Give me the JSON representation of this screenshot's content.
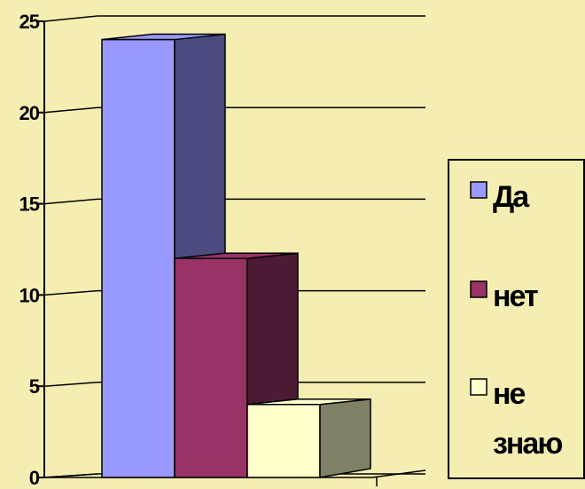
{
  "chart_data": {
    "type": "bar",
    "style": "3d-column",
    "categories": [
      ""
    ],
    "series": [
      {
        "name": "Да",
        "values": [
          24
        ],
        "color": "#9999ff",
        "side_color": "#4b4b80",
        "top_color": "#9999ff"
      },
      {
        "name": "нет",
        "values": [
          12
        ],
        "color": "#993366",
        "side_color": "#4c1a33",
        "top_color": "#993366"
      },
      {
        "name": "не знаю",
        "values": [
          4
        ],
        "color": "#ffffcc",
        "side_color": "#808066",
        "top_color": "#ffffcc"
      }
    ],
    "legend_lines": [
      [
        "Да"
      ],
      [
        "нет"
      ],
      [
        "не",
        "знаю"
      ]
    ],
    "ylim": [
      0,
      25
    ],
    "yticks": [
      "0",
      "5",
      "10",
      "15",
      "20",
      "25"
    ],
    "title": "",
    "xlabel": "",
    "ylabel": "",
    "grid": true,
    "legend_position": "right",
    "background": "#f5eeb2"
  }
}
